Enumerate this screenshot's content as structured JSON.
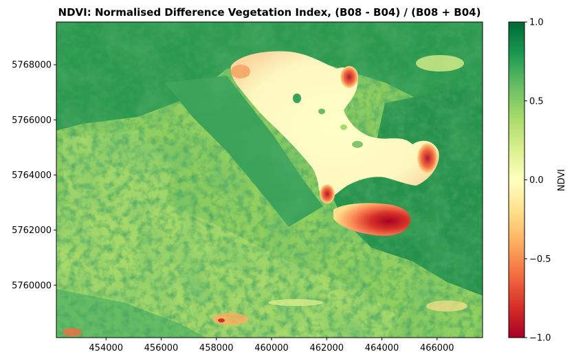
{
  "chart_data": {
    "type": "heatmap",
    "title": "NDVI: Normalised Difference Vegetation Index, (B08 - B04) / (B08 + B04)",
    "x_ticks": [
      "454000",
      "456000",
      "458000",
      "460000",
      "462000",
      "464000",
      "466000"
    ],
    "x_tick_values": [
      454000,
      456000,
      458000,
      460000,
      462000,
      464000,
      466000
    ],
    "y_ticks": [
      "5768000",
      "5766000",
      "5764000",
      "5762000",
      "5760000"
    ],
    "y_tick_values": [
      5768000,
      5766000,
      5764000,
      5762000,
      5760000
    ],
    "xlim": [
      452200,
      467650
    ],
    "ylim": [
      5758100,
      5769550
    ],
    "colorbar": {
      "label": "NDVI",
      "colormap": "RdYlGn",
      "range": [
        -1.0,
        1.0
      ],
      "ticks": [
        "1.0",
        "0.5",
        "0.0",
        "−0.5",
        "−1.0"
      ],
      "tick_values": [
        1.0,
        0.5,
        0.0,
        -0.5,
        -1.0
      ]
    },
    "legend": "none",
    "grid": false,
    "colors": {
      "dense_vegetation": "#1a9850",
      "moderate_vegetation": "#91cf60",
      "sparse": "#d9ef8b",
      "near_zero": "#ffffbf",
      "negative": "#fc8d59",
      "strong_negative": "#a50026"
    }
  }
}
